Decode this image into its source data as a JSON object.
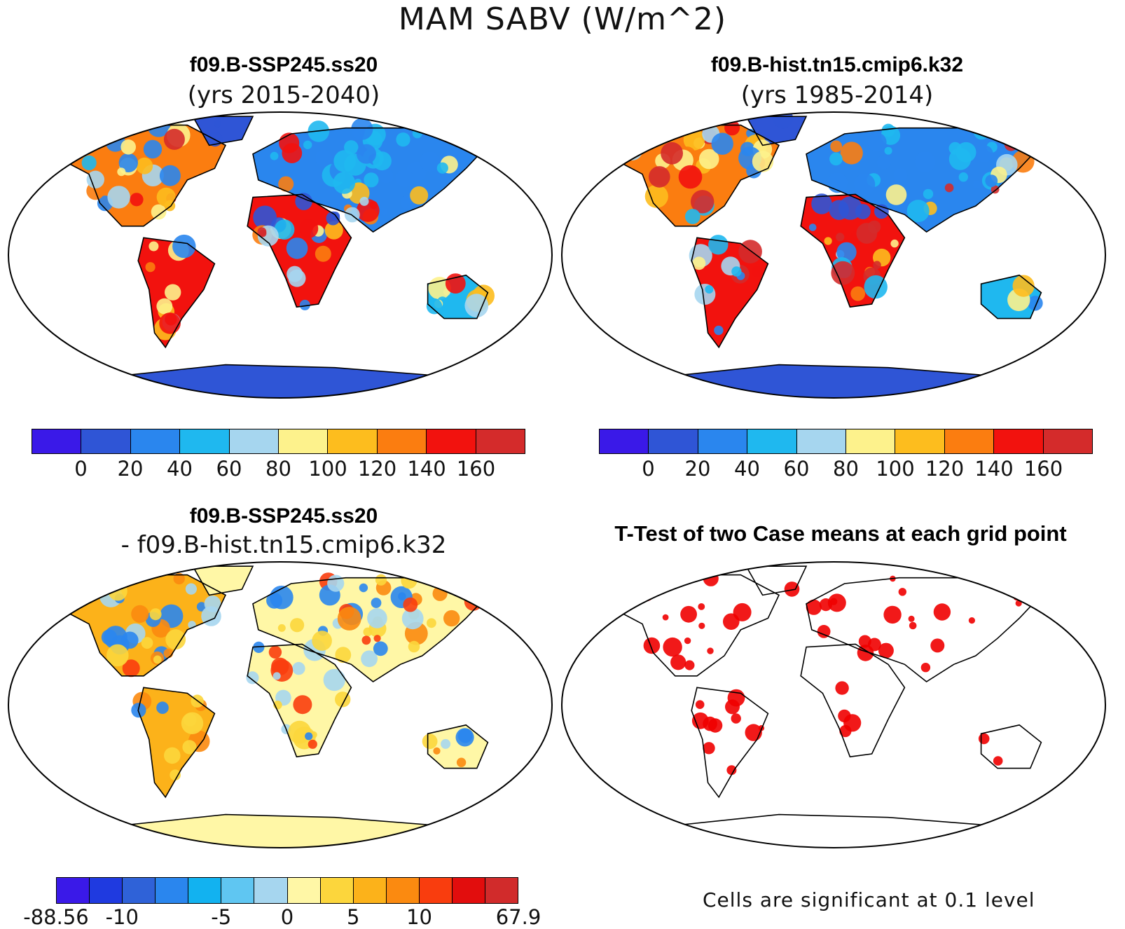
{
  "figure_title": "MAM SABV (W/m^2)",
  "panels": [
    {
      "title": "f09.B-SSP245.ss20",
      "subtitle": "(yrs 2015-2040)",
      "colorbar": {
        "colors": [
          "#3a19e8",
          "#2f55d6",
          "#2a86ee",
          "#1fb8ef",
          "#a6d6ef",
          "#fdf28c",
          "#fdbd1e",
          "#fb7d10",
          "#f2120e",
          "#d42b2b"
        ],
        "tick_labels": [
          "0",
          "20",
          "40",
          "60",
          "80",
          "100",
          "120",
          "140",
          "160"
        ]
      }
    },
    {
      "title": "f09.B-hist.tn15.cmip6.k32",
      "subtitle": "(yrs 1985-2014)",
      "colorbar": {
        "colors": [
          "#3a19e8",
          "#2f55d6",
          "#2a86ee",
          "#1fb8ef",
          "#a6d6ef",
          "#fdf28c",
          "#fdbd1e",
          "#fb7d10",
          "#f2120e",
          "#d42b2b"
        ],
        "tick_labels": [
          "0",
          "20",
          "40",
          "60",
          "80",
          "100",
          "120",
          "140",
          "160"
        ]
      }
    },
    {
      "title": "f09.B-SSP245.ss20",
      "subtitle": "- f09.B-hist.tn15.cmip6.k32",
      "colorbar": {
        "colors": [
          "#3a19e8",
          "#1f3ae0",
          "#2f62d8",
          "#2a86ee",
          "#12b2f0",
          "#5fc6f2",
          "#a6d6ef",
          "#fff7a6",
          "#fcd63c",
          "#fcb21a",
          "#fb8a10",
          "#f93d0e",
          "#e20d0d",
          "#d12b2b"
        ],
        "tick_labels": [
          "-88.56",
          "-10",
          "-5",
          "0",
          "5",
          "10",
          "67.9"
        ]
      }
    },
    {
      "title": "T-Test of two Case means at each grid point",
      "footnote": "Cells are significant at 0.1 level",
      "significant_color": "#f00000"
    }
  ],
  "map": {
    "projection": "robinson",
    "background": "#ffffff",
    "coastline_color": "#000000"
  }
}
